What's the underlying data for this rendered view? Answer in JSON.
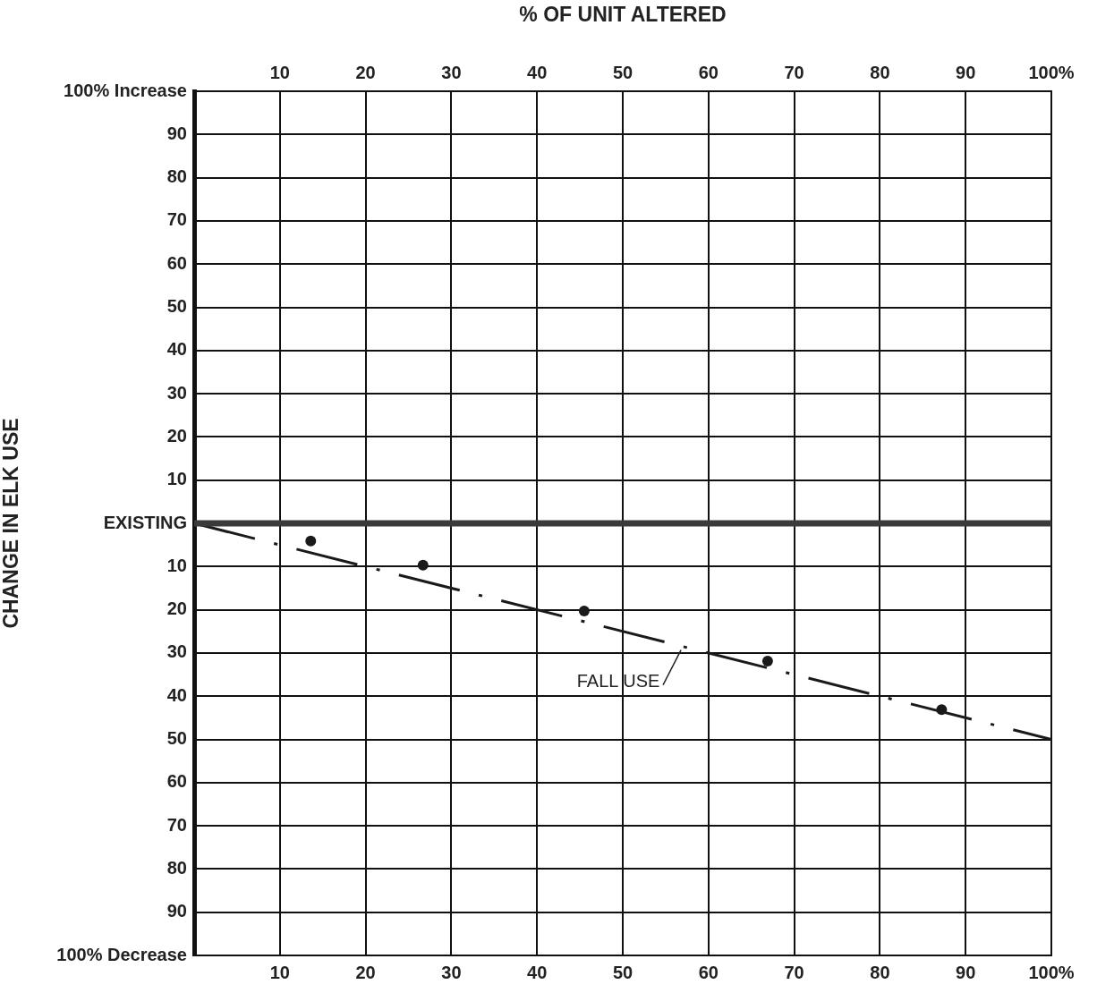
{
  "chart_data": {
    "type": "scatter",
    "x2label": "% OF UNIT ALTERED",
    "ylabel": "CHANGE IN ELK USE",
    "xlim": [
      0,
      100
    ],
    "xticks": [
      10,
      20,
      30,
      40,
      50,
      60,
      70,
      80,
      90,
      {
        "value": 100,
        "label": "100%"
      }
    ],
    "x2lim": [
      0,
      100
    ],
    "x2ticks": [
      10,
      20,
      30,
      40,
      50,
      60,
      70,
      80,
      90,
      {
        "value": 100,
        "label": "100%"
      }
    ],
    "ylim": [
      -100,
      100
    ],
    "yticks": [
      {
        "value": -100,
        "label": "100% Decrease"
      },
      {
        "value": -90,
        "label": "90"
      },
      {
        "value": -80,
        "label": "80"
      },
      {
        "value": -70,
        "label": "70"
      },
      {
        "value": -60,
        "label": "60"
      },
      {
        "value": -50,
        "label": "50"
      },
      {
        "value": -40,
        "label": "40"
      },
      {
        "value": -30,
        "label": "30"
      },
      {
        "value": -20,
        "label": "20"
      },
      {
        "value": -10,
        "label": "10"
      },
      {
        "value": 0,
        "label": "EXISTING"
      },
      10,
      20,
      30,
      40,
      50,
      60,
      70,
      80,
      90,
      {
        "value": 100,
        "label": "100% Increase"
      }
    ],
    "grid": true,
    "legend": false,
    "ref_lines": [
      {
        "axis": "y",
        "value": 0,
        "color": "#3a3a3a"
      }
    ],
    "annotations": [
      {
        "text": "FALL USE",
        "x": 57,
        "y": -28.5
      }
    ],
    "series": [
      {
        "type": "line",
        "color": "#1a1a1a",
        "x": [
          0,
          100
        ],
        "values": [
          0,
          -50
        ],
        "line_style": "dashed",
        "marker": "none"
      },
      {
        "type": "scatter",
        "color": "#1a1a1a",
        "x": [
          13.6,
          26.7,
          45.5,
          66.9,
          87.2
        ],
        "values": [
          -4.1,
          -9.7,
          -20.3,
          -31.9,
          -43.1
        ],
        "marker": "circle"
      }
    ]
  }
}
